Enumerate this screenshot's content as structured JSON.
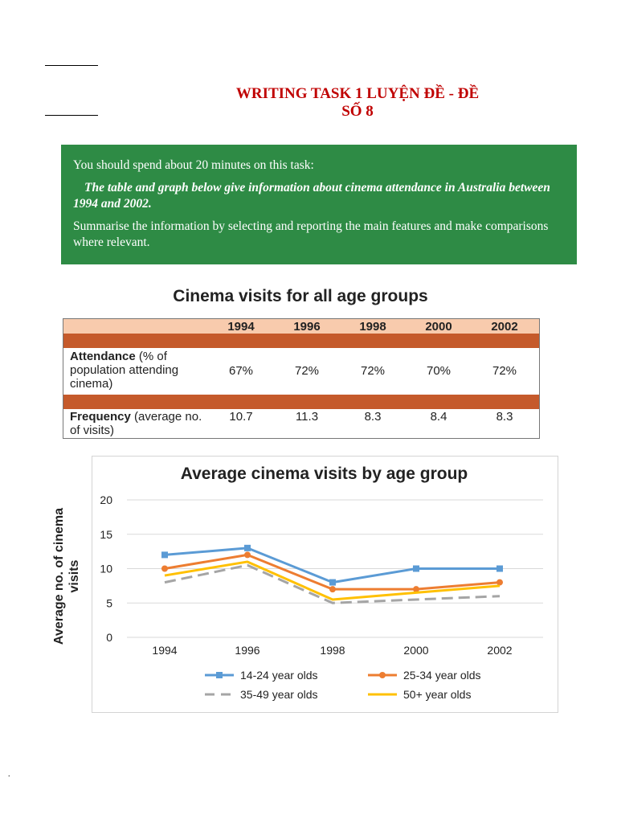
{
  "heading": {
    "line1": "WRITING TASK 1 LUYỆN ĐỀ - ĐỀ",
    "line2": "SỐ 8"
  },
  "task_box": {
    "intro": "You should spend about 20 minutes on this task:",
    "task": "The table and graph below give information about cinema attendance in Australia between 1994 and 2002.",
    "instruction": "Summarise the information by selecting and reporting the main features and make comparisons where relevant."
  },
  "table": {
    "title": "Cinema visits for all age groups",
    "years": [
      "1994",
      "1996",
      "1998",
      "2000",
      "2002"
    ],
    "attendance": {
      "label_bold": "Attendance",
      "label_rest": " (% of population attending cinema)",
      "values": [
        "67%",
        "72%",
        "72%",
        "70%",
        "72%"
      ]
    },
    "frequency": {
      "label_bold": "Frequency",
      "label_rest": " (average no. of visits)",
      "values": [
        "10.7",
        "11.3",
        "8.3",
        "8.4",
        "8.3"
      ]
    },
    "colors": {
      "header": "#f8cbad",
      "band": "#c55a2b"
    }
  },
  "chart_data": {
    "type": "line",
    "title": "Average cinema visits by age group",
    "ylabel": "Average no. of cinema visits",
    "xlabel": "",
    "x": [
      "1994",
      "1996",
      "1998",
      "2000",
      "2002"
    ],
    "ylim": [
      0,
      20
    ],
    "yticks": [
      "0",
      "5",
      "10",
      "15",
      "20"
    ],
    "grid": true,
    "legend_position": "bottom",
    "series": [
      {
        "name": "14-24 year olds",
        "values": [
          12,
          13,
          8,
          10,
          10
        ],
        "color": "#5b9bd5",
        "marker": "square",
        "dash": false
      },
      {
        "name": "25-34 year olds",
        "values": [
          10,
          12,
          7,
          7,
          8
        ],
        "color": "#ed7d31",
        "marker": "circle",
        "dash": false
      },
      {
        "name": "35-49 year olds",
        "values": [
          8,
          10.5,
          5,
          5.5,
          6
        ],
        "color": "#a5a5a5",
        "marker": "none",
        "dash": true
      },
      {
        "name": "50+ year olds",
        "values": [
          9,
          11,
          5.5,
          6.5,
          7.5
        ],
        "color": "#ffc000",
        "marker": "none",
        "dash": false
      }
    ]
  },
  "footer": {
    "mark": "."
  }
}
